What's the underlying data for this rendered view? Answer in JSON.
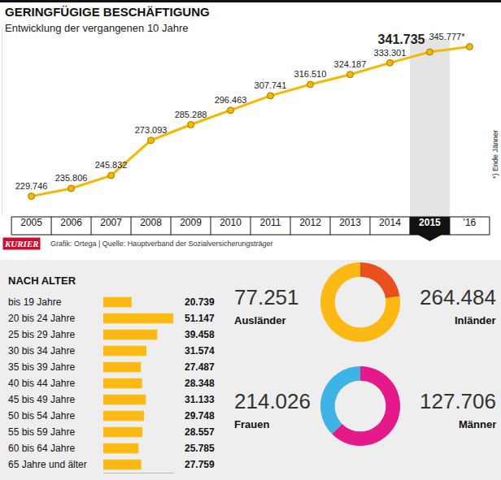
{
  "chart_data": [
    {
      "type": "line",
      "title": "GERINGFÜGIGE BESCHÄFTIGUNG",
      "subtitle": "Entwicklung der vergangenen 10 Jahre",
      "categories": [
        "2005",
        "2006",
        "2007",
        "2008",
        "2009",
        "2010",
        "2011",
        "2012",
        "2013",
        "2014",
        "2015",
        "'16"
      ],
      "values": [
        229746,
        235806,
        245832,
        273093,
        285288,
        296463,
        307741,
        316510,
        324187,
        333301,
        341735,
        345777
      ],
      "value_labels": [
        "229.746",
        "235.806",
        "245.832",
        "273.093",
        "285.288",
        "296.463",
        "307.741",
        "316.510",
        "324.187",
        "333.301",
        "341.735",
        "345.777*"
      ],
      "data_labels": true,
      "color": "#f5b800",
      "marker": "circle",
      "ylim": [
        215000,
        360000
      ],
      "tick_labels": "x",
      "grid": false,
      "annotations": [
        "*) Ende Jänner"
      ],
      "logo": "KURIER",
      "source": "Grafik: Ortega | Quelle: Hauptverband der Sozialversicherungsträger"
    },
    {
      "type": "bar",
      "orientation": "horizontal",
      "title": "NACH ALTER",
      "categories": [
        "bis 19 Jahre",
        "20 bis 24 Jahre",
        "25 bis 29 Jahre",
        "30 bis 34 Jahre",
        "35 bis 39 Jahre",
        "40 bis 44 Jahre",
        "45 bis 49 Jahre",
        "50 bis 54 Jahre",
        "55 bis 59 Jahre",
        "60 bis 64 Jahre",
        "65 Jahre und älter"
      ],
      "values": [
        20739,
        51147,
        39458,
        31574,
        27487,
        28348,
        31133,
        29748,
        28557,
        25785,
        27759
      ],
      "value_labels": [
        "20.739",
        "51.147",
        "39.458",
        "31.574",
        "27.487",
        "28.348",
        "31.133",
        "29.748",
        "28.557",
        "25.785",
        "27.759"
      ],
      "data_labels": true,
      "color": "#fdb913",
      "xlim": [
        0,
        52000
      ],
      "tick_labels": "y",
      "grid": false
    },
    {
      "type": "pie",
      "categories": [
        "Ausländer",
        "Inländer"
      ],
      "values": [
        77251,
        264484
      ],
      "value_labels": [
        "77.251",
        "264.484"
      ],
      "colors": [
        "#e8501e",
        "#fdb913"
      ],
      "data_labels": true
    },
    {
      "type": "pie",
      "categories": [
        "Frauen",
        "Männer"
      ],
      "values": [
        214026,
        127706
      ],
      "value_labels": [
        "214.026",
        "127.706"
      ],
      "colors": [
        "#e6198a",
        "#3db4e5"
      ],
      "data_labels": true
    }
  ]
}
